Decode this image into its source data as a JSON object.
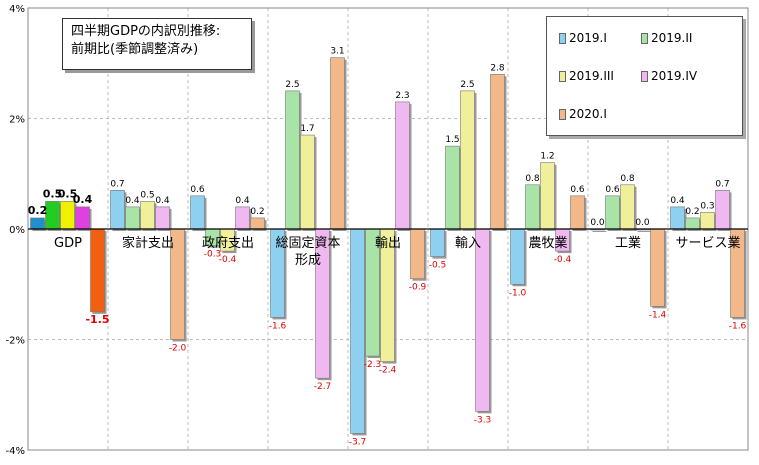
{
  "chart_data": {
    "type": "bar",
    "title_lines": [
      "四半期GDPの内訳別推移:",
      "前期比(季節調整済み)"
    ],
    "y_ticks": [
      "4%",
      "2%",
      "0%",
      "-2%",
      "-4%"
    ],
    "ylim": [
      -4,
      4
    ],
    "grid": true,
    "legend_position": "top-right",
    "categories": [
      "GDP",
      "家計支出",
      "政府支出",
      "総固定資本形成",
      "輸出",
      "輸入",
      "農牧業",
      "工業",
      "サービス業"
    ],
    "category_labels": [
      [
        "GDP"
      ],
      [
        "家計支出"
      ],
      [
        "政府支出"
      ],
      [
        "総固定資本",
        "形成"
      ],
      [
        "輸出"
      ],
      [
        "輸入"
      ],
      [
        "農牧業"
      ],
      [
        "工業"
      ],
      [
        "サービス業"
      ]
    ],
    "series": [
      {
        "name": "2019.I",
        "color": "#8fd0f0",
        "values": [
          0.2,
          0.7,
          0.6,
          -1.6,
          -3.7,
          -0.5,
          -1.0,
          0.0,
          0.4
        ]
      },
      {
        "name": "2019.II",
        "color": "#a8e4a8",
        "values": [
          0.5,
          0.4,
          -0.3,
          2.5,
          -2.3,
          1.5,
          0.8,
          0.6,
          0.2
        ]
      },
      {
        "name": "2019.III",
        "color": "#f0f09a",
        "values": [
          0.5,
          0.5,
          -0.4,
          1.7,
          -2.4,
          2.5,
          1.2,
          0.8,
          0.3
        ]
      },
      {
        "name": "2019.IV",
        "color": "#f0b8f0",
        "values": [
          0.4,
          0.4,
          0.4,
          -2.7,
          2.3,
          -3.3,
          -0.4,
          0.0,
          0.7
        ]
      },
      {
        "name": "2020.I",
        "color": "#f2b88a",
        "values": [
          -1.5,
          -2.0,
          0.2,
          3.1,
          -0.9,
          2.8,
          0.6,
          -1.4,
          -1.6
        ]
      }
    ],
    "value_labels": [
      [
        "0.2",
        "0.5",
        "0.5",
        "0.4",
        "-1.5"
      ],
      [
        "0.7",
        "0.4",
        "0.5",
        "0.4",
        "-2.0"
      ],
      [
        "0.6",
        "-0.3",
        "-0.4",
        "0.4",
        "0.2"
      ],
      [
        "-1.6",
        "2.5",
        "1.7",
        "-2.7",
        "3.1"
      ],
      [
        "-3.7",
        "-2.3",
        "-2.4",
        "2.3",
        "-0.9"
      ],
      [
        "-0.5",
        "1.5",
        "2.5",
        "-3.3",
        "2.8"
      ],
      [
        "-1.0",
        "0.8",
        "1.2",
        "-0.4",
        "0.6"
      ],
      [
        "0.0",
        "0.6",
        "0.8",
        "0.0",
        "-1.4"
      ],
      [
        "0.4",
        "0.2",
        "0.3",
        "0.7",
        "-1.6"
      ]
    ],
    "gdp_highlight_colors": [
      "#1f8fd0",
      "#22cc22",
      "#f0f000",
      "#e040e0",
      "#f06010"
    ]
  }
}
